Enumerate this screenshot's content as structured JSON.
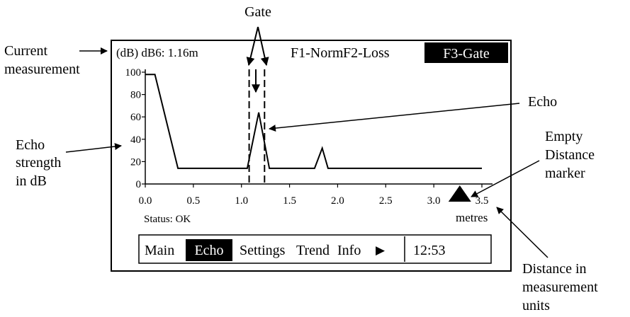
{
  "callouts": {
    "gate": "Gate",
    "current_line1": "Current",
    "current_line2": "measurement",
    "echo": "Echo",
    "strength_line1": "Echo",
    "strength_line2": "strength",
    "strength_line3": "in dB",
    "empty_line1": "Empty",
    "empty_line2": "Distance",
    "empty_line3": "marker",
    "dist_line1": "Distance in",
    "dist_line2": "measurement",
    "dist_line3": "units"
  },
  "screen": {
    "measurement": "(dB) dB6: 1.16m",
    "f1": "F1-Norm",
    "f2": "F2-Loss",
    "f3": "F3-Gate",
    "status": "Status: OK",
    "units": "metres",
    "menu": {
      "main": "Main",
      "echo": "Echo",
      "settings": "Settings",
      "trend": "Trend",
      "info": "Info",
      "arrow": "▶",
      "time": "12:53"
    }
  },
  "colors": {
    "foreground": "#000000",
    "background": "#ffffff"
  },
  "chart_data": {
    "type": "line",
    "x_ticks": [
      "0.0",
      "0.5",
      "1.0",
      "1.5",
      "2.0",
      "2.5",
      "3.0",
      "3.5"
    ],
    "y_ticks": [
      "0",
      "20",
      "40",
      "60",
      "80",
      "100"
    ],
    "xlim": [
      0,
      3.5
    ],
    "ylim": [
      0,
      100
    ],
    "series": [
      {
        "x": [
          0.0,
          0.1,
          0.34,
          0.75,
          1.06,
          1.18,
          1.29,
          1.76,
          1.84,
          1.9,
          3.5
        ],
        "y": [
          98,
          98,
          14,
          14,
          14,
          64,
          14,
          14,
          32,
          14,
          14
        ]
      }
    ],
    "gate_x": [
      1.08,
      1.24
    ],
    "marker_x": 3.27
  }
}
